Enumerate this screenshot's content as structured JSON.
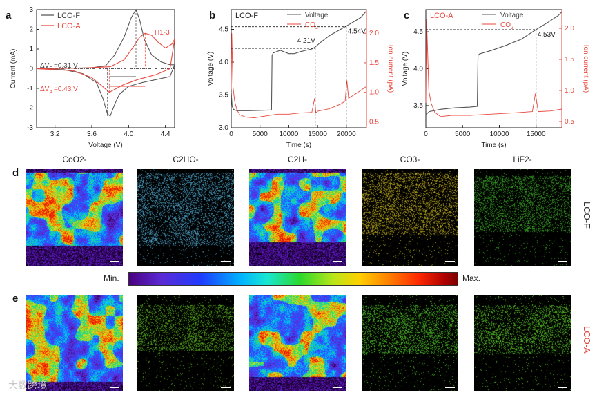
{
  "panels": {
    "a": "a",
    "b": "b",
    "c": "c",
    "d": "d",
    "e": "e"
  },
  "colors": {
    "lco_f": "#555555",
    "lco_a": "#e8483e",
    "co2": "#e8483e",
    "axis": "#222222"
  },
  "chart_data": [
    {
      "id": "a",
      "type": "line",
      "xlabel": "Voltage (V)",
      "ylabel": "Current (mA)",
      "xlim": [
        3.0,
        4.5
      ],
      "ylim": [
        -3,
        3
      ],
      "xticks": [
        "3.2",
        "3.6",
        "4.0",
        "4.4"
      ],
      "yticks": [
        "-3",
        "-2",
        "-1",
        "0",
        "1",
        "2",
        "3"
      ],
      "legend_position": "top-left",
      "series": [
        {
          "name": "LCO-F",
          "color": "#555555",
          "x": [
            3.0,
            3.3,
            3.6,
            3.75,
            3.85,
            3.95,
            4.03,
            4.08,
            4.12,
            4.17,
            4.25,
            4.35,
            4.45,
            4.5,
            4.45,
            4.3,
            4.15,
            4.0,
            3.9,
            3.85,
            3.8,
            3.77,
            3.72,
            3.65,
            3.5,
            3.3,
            3.0
          ],
          "y": [
            0.0,
            0.02,
            0.05,
            0.15,
            0.7,
            1.6,
            2.6,
            3.0,
            2.5,
            1.5,
            0.7,
            0.35,
            0.2,
            0.2,
            -0.4,
            -0.55,
            -0.7,
            -0.9,
            -1.3,
            -1.8,
            -2.4,
            -2.3,
            -1.5,
            -0.7,
            -0.25,
            -0.05,
            0.0
          ]
        },
        {
          "name": "LCO-A",
          "color": "#e8483e",
          "x": [
            3.0,
            3.5,
            3.8,
            3.95,
            4.05,
            4.12,
            4.18,
            4.25,
            4.32,
            4.4,
            4.47,
            4.5,
            4.45,
            4.3,
            4.1,
            3.95,
            3.85,
            3.79,
            3.73,
            3.6,
            3.4,
            3.0
          ],
          "y": [
            0.0,
            0.03,
            0.1,
            0.45,
            1.1,
            1.6,
            1.8,
            1.7,
            1.35,
            1.05,
            1.25,
            1.5,
            0.0,
            -0.3,
            -0.55,
            -0.8,
            -1.05,
            -1.2,
            -0.95,
            -0.45,
            -0.1,
            0.0
          ]
        }
      ],
      "annotations": {
        "dvf": "ΔVF =0.31 V",
        "dva": "ΔVA =0.43 V",
        "h13": "H1-3"
      }
    },
    {
      "id": "b",
      "type": "line",
      "title": "LCO-F",
      "xlabel": "Time (s)",
      "ylabel": "Voltage (V)",
      "y2label": "Ion current (pA)",
      "xlim": [
        0,
        23500
      ],
      "ylim": [
        3.0,
        4.8
      ],
      "y2lim": [
        0.4,
        2.4
      ],
      "xticks": [
        "0",
        "5000",
        "10000",
        "15000",
        "20000"
      ],
      "yticks": [
        "3.0",
        "3.5",
        "4.0",
        "4.5"
      ],
      "y2ticks": [
        "0.5",
        "1.0",
        "1.5",
        "2.0"
      ],
      "legend_position": "top-right",
      "series": [
        {
          "name": "Voltage",
          "color": "#555555",
          "x": [
            0,
            150,
            400,
            1000,
            3000,
            7000,
            7100,
            7300,
            8500,
            10000,
            11000,
            12000,
            13000,
            14000,
            14600,
            15500,
            17000,
            19000,
            21000,
            22500,
            23500
          ],
          "y": [
            3.55,
            3.33,
            3.28,
            3.26,
            3.26,
            3.27,
            4.1,
            4.14,
            4.18,
            4.13,
            4.13,
            4.16,
            4.18,
            4.2,
            4.23,
            4.3,
            4.4,
            4.5,
            4.6,
            4.68,
            4.78
          ]
        },
        {
          "name": "CO2",
          "color": "#e8483e",
          "x": [
            0,
            100,
            300,
            600,
            1000,
            1500,
            2500,
            4000,
            6000,
            8000,
            10000,
            12000,
            14000,
            14500,
            14700,
            15000,
            17000,
            19000,
            19800,
            20100,
            20400,
            22000,
            23500
          ],
          "y": [
            1.05,
            2.0,
            1.1,
            0.85,
            0.7,
            0.62,
            0.58,
            0.57,
            0.6,
            0.63,
            0.63,
            0.65,
            0.66,
            0.9,
            0.65,
            0.68,
            0.72,
            0.8,
            0.85,
            1.2,
            0.9,
            1.0,
            1.1
          ]
        }
      ],
      "markers": [
        "4.21V",
        "4.54V"
      ]
    },
    {
      "id": "c",
      "type": "line",
      "title": "LCO-A",
      "xlabel": "Time (s)",
      "ylabel": "Voltage (V)",
      "y2label": "Ion current (pA)",
      "xlim": [
        0,
        18500
      ],
      "ylim": [
        3.2,
        4.8
      ],
      "y2lim": [
        0.4,
        2.3
      ],
      "xticks": [
        "0",
        "5000",
        "10000",
        "15000"
      ],
      "yticks": [
        "3.5",
        "4.0",
        "4.5"
      ],
      "y2ticks": [
        "0.5",
        "1.0",
        "1.5",
        "2.0"
      ],
      "legend_position": "top-right",
      "series": [
        {
          "name": "Voltage",
          "color": "#555555",
          "x": [
            0,
            500,
            2000,
            4000,
            6000,
            7000,
            7100,
            7300,
            9000,
            11000,
            13000,
            15000,
            16500,
            18000,
            18500
          ],
          "y": [
            3.38,
            3.42,
            3.45,
            3.47,
            3.48,
            3.49,
            4.18,
            4.2,
            4.25,
            4.32,
            4.4,
            4.53,
            4.62,
            4.72,
            4.77
          ]
        },
        {
          "name": "CO2",
          "color": "#e8483e",
          "x": [
            0,
            100,
            250,
            400,
            700,
            1200,
            2000,
            3500,
            6000,
            9000,
            12000,
            14500,
            14900,
            15300,
            17000,
            18500
          ],
          "y": [
            0.8,
            2.15,
            1.6,
            1.0,
            0.8,
            0.65,
            0.58,
            0.6,
            0.6,
            0.62,
            0.64,
            0.66,
            0.95,
            0.66,
            0.67,
            0.7
          ]
        }
      ],
      "markers": [
        "4.53V"
      ]
    }
  ],
  "maps": {
    "titles": [
      "CoO2-",
      "C2HO-",
      "C2H-",
      "CO3-",
      "LiF2-"
    ],
    "row_labels": [
      "LCO-F",
      "LCO-A"
    ],
    "colorbar": {
      "min": "Min.",
      "max": "Max."
    }
  },
  "watermark": "大数跨境"
}
